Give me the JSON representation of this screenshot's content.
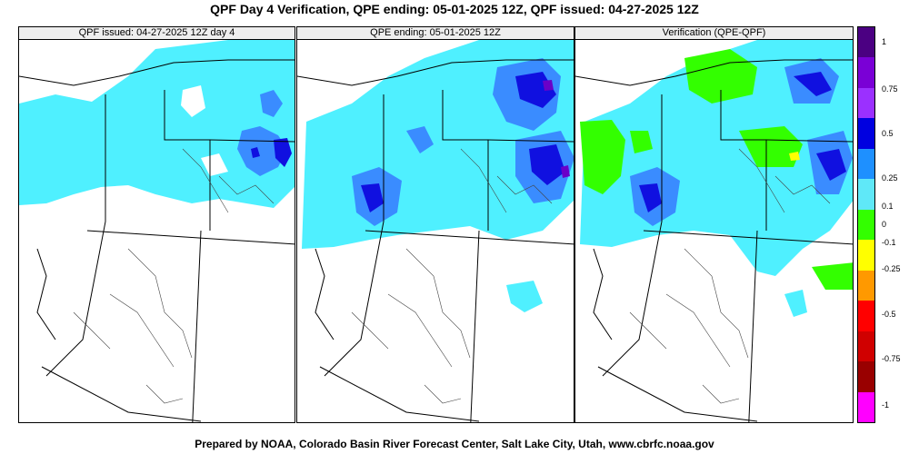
{
  "title": "QPF Day 4 Verification, QPE ending: 05-01-2025 12Z, QPF issued: 04-27-2025 12Z",
  "footer": "Prepared by NOAA, Colorado Basin River Forecast Center, Salt Lake City, Utah, www.cbrfc.noaa.gov",
  "panels": [
    {
      "title": "QPF issued: 04-27-2025 12Z day 4"
    },
    {
      "title": "QPE ending: 05-01-2025 12Z"
    },
    {
      "title": "Verification (QPE-QPF)"
    }
  ],
  "legend": {
    "labels": [
      "1",
      "0.75",
      "0.5",
      "0.25",
      "0.1",
      "0",
      "-0.1",
      "-0.25",
      "-0.5",
      "-0.75",
      "-1"
    ],
    "colors": [
      "#4b0082",
      "#7a00d6",
      "#9b30ff",
      "#0000e0",
      "#1e90ff",
      "#5fe8f8",
      "#33ff00",
      "#ffff00",
      "#ff9900",
      "#ff0000",
      "#d00000",
      "#990000",
      "#ff00ff"
    ]
  },
  "colors": {
    "light_cyan": "#4ff0ff",
    "med_blue": "#3a8cff",
    "dark_blue": "#1010e0",
    "purple": "#6a00c8",
    "green": "#33ff00",
    "yellow": "#ffff00"
  }
}
